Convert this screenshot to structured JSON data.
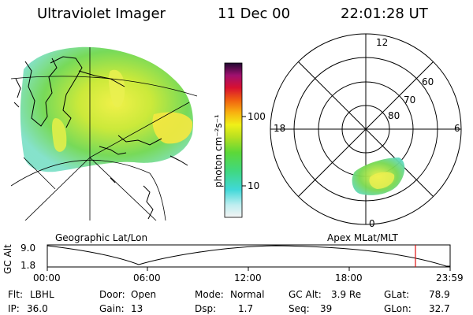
{
  "header": {
    "instrument": "Ultraviolet Imager",
    "date": "11 Dec 00",
    "time": "22:01:28 UT"
  },
  "panels": {
    "left_label": "Geographic Lat/Lon",
    "right_label": "Apex MLat/MLT"
  },
  "colorbar": {
    "label": "photon cm⁻²s⁻¹",
    "ticks": [
      "100",
      "10"
    ],
    "scale": "log"
  },
  "polar": {
    "mlt_labels": [
      "12",
      "18",
      "6",
      "0"
    ],
    "lat_labels": [
      "60",
      "70",
      "80"
    ]
  },
  "altitude_plot": {
    "ylabel": "GC Alt",
    "yticks": [
      "9.0",
      "1.8"
    ],
    "xticks": [
      "00:00",
      "06:00",
      "12:00",
      "18:00",
      "23:59"
    ],
    "current_marker_color": "#e01010"
  },
  "status": {
    "flt_label": "Flt:",
    "flt_value": "LBHL",
    "ip_label": "IP:",
    "ip_value": "36.0",
    "door_label": "Door:",
    "door_value": "Open",
    "gain_label": "Gain:",
    "gain_value": "13",
    "mode_label": "Mode:",
    "mode_value": "Normal",
    "dsp_label": "Dsp:",
    "dsp_value": "1.7",
    "gcalt_label": "GC Alt:",
    "gcalt_value": "3.9 Re",
    "seq_label": "Seq:",
    "seq_value": "39",
    "glat_label": "GLat:",
    "glat_value": "78.9",
    "glon_label": "GLon:",
    "glon_value": "32.7"
  }
}
